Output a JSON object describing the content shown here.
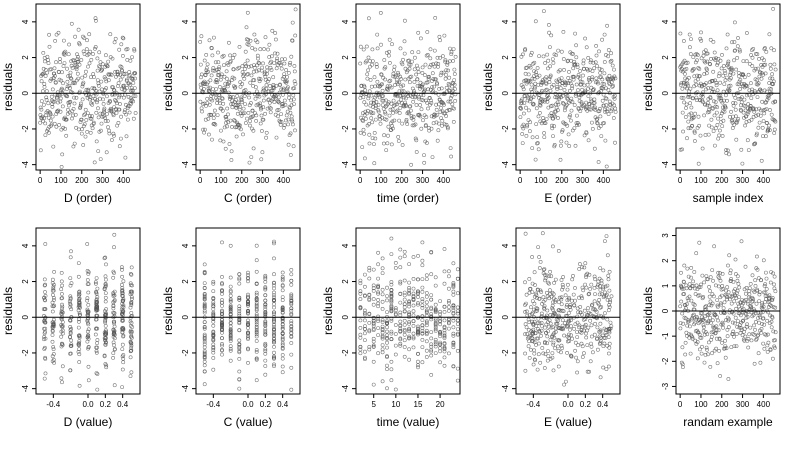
{
  "figure": {
    "background": "#ffffff",
    "point_color": "#555555",
    "zero_line_color": "#000000"
  },
  "chart_data": [
    {
      "type": "scatter",
      "xlabel": "D (order)",
      "ylabel": "residuals",
      "xlim": [
        -20,
        480
      ],
      "ylim": [
        -4.3,
        5.0
      ],
      "x_ticks": [
        0,
        100,
        200,
        300,
        400
      ],
      "y_ticks": [
        -4,
        -2,
        0,
        2,
        4
      ],
      "reference_line": 0,
      "x_distribution": "index",
      "y_distribution": "normal",
      "n_points": 460,
      "y_sd": 1.45,
      "seed": 11
    },
    {
      "type": "scatter",
      "xlabel": "C (order)",
      "ylabel": "residuals",
      "xlim": [
        -20,
        480
      ],
      "ylim": [
        -4.3,
        5.0
      ],
      "x_ticks": [
        0,
        100,
        200,
        300,
        400
      ],
      "y_ticks": [
        -4,
        -2,
        0,
        2,
        4
      ],
      "reference_line": 0,
      "x_distribution": "index",
      "y_distribution": "normal",
      "n_points": 460,
      "y_sd": 1.45,
      "seed": 23
    },
    {
      "type": "scatter",
      "xlabel": "time (order)",
      "ylabel": "residuals",
      "xlim": [
        -20,
        480
      ],
      "ylim": [
        -4.3,
        5.0
      ],
      "x_ticks": [
        0,
        100,
        200,
        300,
        400
      ],
      "y_ticks": [
        -4,
        -2,
        0,
        2,
        4
      ],
      "reference_line": 0,
      "x_distribution": "index",
      "y_distribution": "normal",
      "n_points": 460,
      "y_sd": 1.45,
      "seed": 37
    },
    {
      "type": "scatter",
      "xlabel": "E (order)",
      "ylabel": "residuals",
      "xlim": [
        -20,
        480
      ],
      "ylim": [
        -4.3,
        5.0
      ],
      "x_ticks": [
        0,
        100,
        200,
        300,
        400
      ],
      "y_ticks": [
        -4,
        -2,
        0,
        2,
        4
      ],
      "reference_line": 0,
      "x_distribution": "index",
      "y_distribution": "normal",
      "n_points": 460,
      "y_sd": 1.45,
      "seed": 41
    },
    {
      "type": "scatter",
      "xlabel": "sample index",
      "ylabel": "residuals",
      "xlim": [
        -20,
        480
      ],
      "ylim": [
        -4.3,
        5.0
      ],
      "x_ticks": [
        0,
        100,
        200,
        300,
        400
      ],
      "y_ticks": [
        -4,
        -2,
        0,
        2,
        4
      ],
      "reference_line": 0,
      "x_distribution": "index",
      "y_distribution": "normal",
      "n_points": 460,
      "y_sd": 1.45,
      "seed": 53
    },
    {
      "type": "scatter",
      "xlabel": "D (value)",
      "ylabel": "residuals",
      "xlim": [
        -0.6,
        0.6
      ],
      "ylim": [
        -4.3,
        5.0
      ],
      "x_ticks": [
        -0.4,
        0.0,
        0.2,
        0.4
      ],
      "x_tick_labels": [
        "-0.4",
        "0.0",
        "0.2",
        "0.4"
      ],
      "y_ticks": [
        -4,
        -2,
        0,
        2,
        4
      ],
      "reference_line": 0,
      "x_distribution": "discrete-jitter",
      "x_levels": [
        -0.5,
        -0.4,
        -0.3,
        -0.2,
        -0.1,
        0.0,
        0.1,
        0.2,
        0.3,
        0.4,
        0.5
      ],
      "y_distribution": "normal",
      "n_points": 460,
      "y_sd": 1.45,
      "seed": 67
    },
    {
      "type": "scatter",
      "xlabel": "C (value)",
      "ylabel": "residuals",
      "xlim": [
        -0.6,
        0.6
      ],
      "ylim": [
        -4.3,
        5.0
      ],
      "x_ticks": [
        -0.4,
        0.0,
        0.2,
        0.4
      ],
      "x_tick_labels": [
        "-0.4",
        "0.0",
        "0.2",
        "0.4"
      ],
      "y_ticks": [
        -4,
        -2,
        0,
        2,
        4
      ],
      "reference_line": 0,
      "x_distribution": "discrete",
      "x_levels": [
        -0.5,
        -0.4,
        -0.3,
        -0.2,
        -0.1,
        0.0,
        0.1,
        0.2,
        0.3,
        0.4,
        0.5
      ],
      "y_distribution": "normal",
      "n_points": 460,
      "y_sd": 1.45,
      "seed": 71
    },
    {
      "type": "scatter",
      "xlabel": "time (value)",
      "ylabel": "residuals",
      "xlim": [
        1,
        24.5
      ],
      "ylim": [
        -4.3,
        5.0
      ],
      "x_ticks": [
        5,
        10,
        15,
        20
      ],
      "y_ticks": [
        -4,
        -2,
        0,
        2,
        4
      ],
      "reference_line": 0,
      "x_distribution": "discrete",
      "x_levels": [
        2,
        3,
        4,
        5,
        6,
        7,
        8,
        9,
        10,
        11,
        12,
        13,
        14,
        15,
        16,
        17,
        18,
        19,
        20,
        21,
        22,
        23,
        24
      ],
      "y_distribution": "normal",
      "n_points": 460,
      "y_sd": 1.45,
      "seed": 83
    },
    {
      "type": "scatter",
      "xlabel": "E (value)",
      "ylabel": "residuals",
      "xlim": [
        -0.6,
        0.6
      ],
      "ylim": [
        -4.3,
        5.0
      ],
      "x_ticks": [
        -0.4,
        0.0,
        0.2,
        0.4
      ],
      "x_tick_labels": [
        "-0.4",
        "0.0",
        "0.2",
        "0.4"
      ],
      "y_ticks": [
        -4,
        -2,
        0,
        2,
        4
      ],
      "reference_line": 0,
      "x_distribution": "uniform",
      "y_distribution": "normal",
      "n_points": 460,
      "y_sd": 1.45,
      "seed": 97
    },
    {
      "type": "scatter",
      "xlabel": "randam example",
      "ylabel": "residuals",
      "xlim": [
        -20,
        480
      ],
      "ylim": [
        -3.3,
        3.3
      ],
      "x_ticks": [
        0,
        100,
        200,
        300,
        400
      ],
      "y_ticks": [
        -3,
        -2,
        -1,
        0,
        1,
        2,
        3
      ],
      "reference_line": 0,
      "x_distribution": "index",
      "y_distribution": "normal",
      "n_points": 460,
      "y_sd": 1.0,
      "seed": 101
    }
  ]
}
